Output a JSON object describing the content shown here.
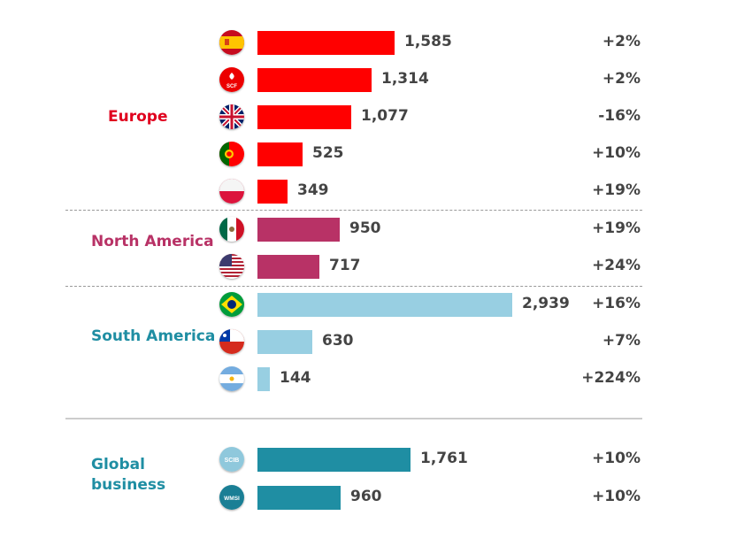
{
  "colors": {
    "europe": "#ff0000",
    "north_america": "#b83266",
    "south_america": "#98cfe2",
    "global": "#1f8ea3",
    "europe_label": "#e0001e",
    "north_america_label": "#b83266",
    "south_america_label": "#1f8ea3",
    "global_label": "#1f8ea3"
  },
  "chart_data": {
    "type": "bar",
    "orientation": "horizontal",
    "groups": [
      {
        "name": "Europe",
        "items": [
          {
            "icon": "spain-flag-icon",
            "value": 1585,
            "label": "1,585",
            "change": "+2%"
          },
          {
            "icon": "scf-logo-icon",
            "icon_text": "SCF",
            "value": 1314,
            "label": "1,314",
            "change": "+2%"
          },
          {
            "icon": "uk-flag-icon",
            "value": 1077,
            "label": "1,077",
            "change": "-16%"
          },
          {
            "icon": "portugal-flag-icon",
            "value": 525,
            "label": "525",
            "change": "+10%"
          },
          {
            "icon": "poland-flag-icon",
            "value": 349,
            "label": "349",
            "change": "+19%"
          }
        ]
      },
      {
        "name": "North America",
        "items": [
          {
            "icon": "mexico-flag-icon",
            "value": 950,
            "label": "950",
            "change": "+19%"
          },
          {
            "icon": "usa-flag-icon",
            "value": 717,
            "label": "717",
            "change": "+24%"
          }
        ]
      },
      {
        "name": "South America",
        "items": [
          {
            "icon": "brazil-flag-icon",
            "value": 2939,
            "label": "2,939",
            "change": "+16%"
          },
          {
            "icon": "chile-flag-icon",
            "value": 630,
            "label": "630",
            "change": "+7%"
          },
          {
            "icon": "argentina-flag-icon",
            "value": 144,
            "label": "144",
            "change": "+224%"
          }
        ]
      },
      {
        "name": "Global business",
        "name_lines": [
          "Global",
          "business"
        ],
        "items": [
          {
            "icon": "scib-logo-icon",
            "icon_text": "SCIB",
            "value": 1761,
            "label": "1,761",
            "change": "+10%"
          },
          {
            "icon": "wmsi-logo-icon",
            "icon_text": "WMSI",
            "value": 960,
            "label": "960",
            "change": "+10%"
          }
        ]
      }
    ]
  }
}
